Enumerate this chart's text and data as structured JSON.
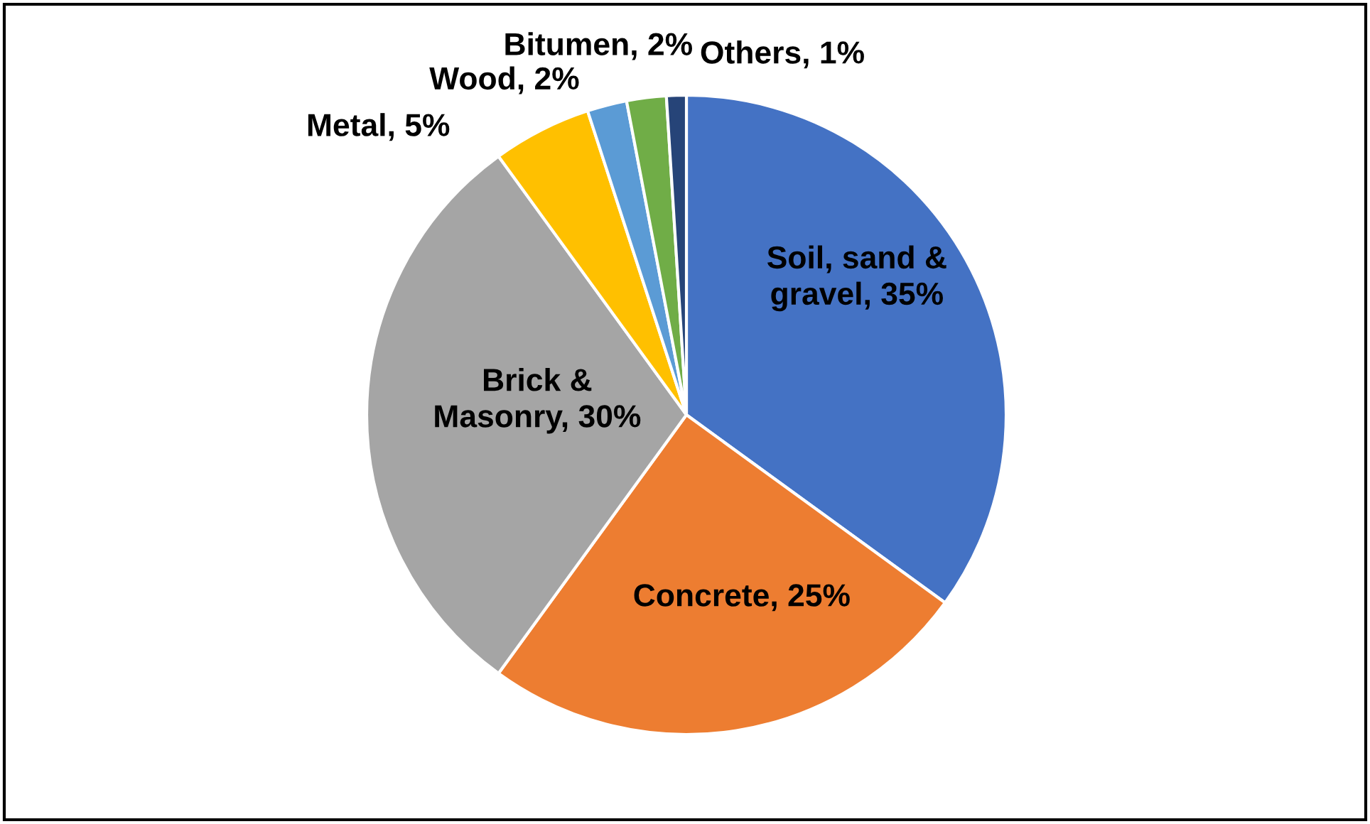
{
  "chart_data": {
    "type": "pie",
    "categories": [
      "Soil, sand & gravel",
      "Concrete",
      "Brick & Masonry",
      "Metal",
      "Wood",
      "Bitumen",
      "Others"
    ],
    "values": [
      35,
      25,
      30,
      5,
      2,
      2,
      1
    ],
    "colors": [
      "#4472c4",
      "#ed7d31",
      "#a5a5a5",
      "#ffc000",
      "#5b9bd5",
      "#70ad47",
      "#264478"
    ],
    "value_labels": [
      "35%",
      "25%",
      "30%",
      "5%",
      "2%",
      "2%",
      "1%"
    ],
    "legend": false
  }
}
